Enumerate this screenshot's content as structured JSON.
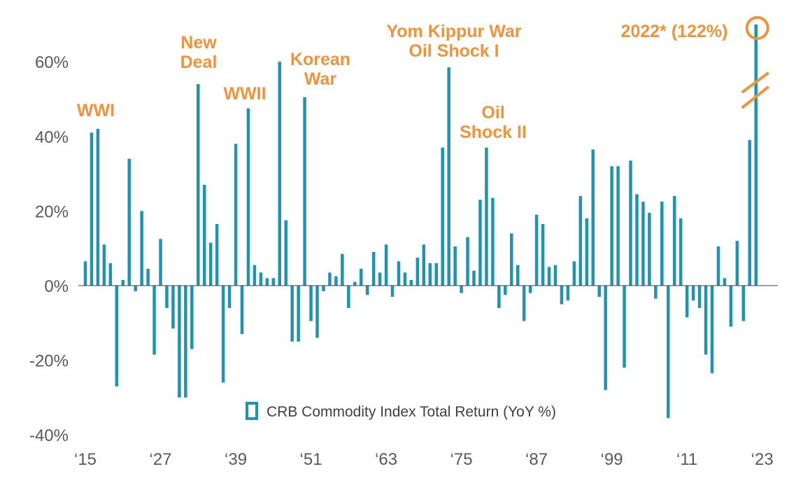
{
  "chart_data": {
    "type": "bar",
    "series": [
      {
        "name": "CRB Commodity Index Total Return (YoY %)",
        "color": "#1f93b0",
        "x": [
          1915,
          1916,
          1917,
          1918,
          1919,
          1920,
          1921,
          1922,
          1923,
          1924,
          1925,
          1926,
          1927,
          1928,
          1929,
          1930,
          1931,
          1932,
          1933,
          1934,
          1935,
          1936,
          1937,
          1938,
          1939,
          1940,
          1941,
          1942,
          1943,
          1944,
          1945,
          1946,
          1947,
          1948,
          1949,
          1950,
          1951,
          1952,
          1953,
          1954,
          1955,
          1956,
          1957,
          1958,
          1959,
          1960,
          1961,
          1962,
          1963,
          1964,
          1965,
          1966,
          1967,
          1968,
          1969,
          1970,
          1971,
          1972,
          1973,
          1974,
          1975,
          1976,
          1977,
          1978,
          1979,
          1980,
          1981,
          1982,
          1983,
          1984,
          1985,
          1986,
          1987,
          1988,
          1989,
          1990,
          1991,
          1992,
          1993,
          1994,
          1995,
          1996,
          1997,
          1998,
          1999,
          2000,
          2001,
          2002,
          2003,
          2004,
          2005,
          2006,
          2007,
          2008,
          2009,
          2010,
          2011,
          2012,
          2013,
          2014,
          2015,
          2016,
          2017,
          2018,
          2019,
          2020,
          2021,
          2022
        ],
        "values": [
          6.5,
          41,
          42,
          11,
          6,
          -27,
          1.5,
          34,
          -1.5,
          20,
          4.5,
          -18.5,
          12.5,
          -6,
          -11.5,
          -30,
          -30,
          -17,
          54,
          27,
          11.5,
          16.5,
          -26,
          -6,
          38,
          -13,
          47.5,
          5.5,
          3.5,
          2,
          2,
          60,
          17.5,
          -15,
          -15,
          50.5,
          -9.5,
          -14,
          -1.5,
          3.5,
          2.5,
          8.5,
          -6,
          1,
          4.5,
          -2.5,
          9,
          3.5,
          11,
          -3,
          6.5,
          3.5,
          1.5,
          7.5,
          11,
          6,
          6,
          37,
          58.5,
          10.5,
          -2,
          13,
          4,
          23,
          37,
          23.5,
          -6,
          -2.5,
          14,
          5.5,
          -9.5,
          -2,
          19,
          16.5,
          5,
          5.5,
          -5,
          -4,
          6.5,
          24,
          18,
          36.5,
          -3,
          -28,
          32,
          32,
          -22,
          33.5,
          24.5,
          22.5,
          19.5,
          -3.5,
          22.5,
          -35.5,
          24,
          18,
          -8.5,
          -4,
          -6,
          -18.5,
          -23.5,
          10.5,
          2,
          -11,
          12,
          -9.5,
          39,
          70
        ]
      }
    ],
    "y_axis": {
      "range": [
        -40,
        60
      ],
      "ticks": [
        -40,
        -20,
        0,
        20,
        40,
        60
      ],
      "tick_labels": [
        "-40%",
        "-20%",
        "0%",
        "20%",
        "40%",
        "60%"
      ]
    },
    "x_axis": {
      "tick_years": [
        1915,
        1927,
        1939,
        1951,
        1963,
        1975,
        1987,
        1999,
        2011,
        2023
      ],
      "tick_labels": [
        "‘15",
        "‘27",
        "‘39",
        "‘51",
        "‘63",
        "‘75",
        "‘87",
        "‘99",
        "‘11",
        "‘23"
      ]
    },
    "axis_break_on_year": 2022,
    "annotations": [
      {
        "lines": [
          "WWI"
        ],
        "year": 1916
      },
      {
        "lines": [
          "New",
          "Deal"
        ],
        "year": 1934
      },
      {
        "lines": [
          "WWII"
        ],
        "year": 1940
      },
      {
        "lines": [
          "Korean",
          "War"
        ],
        "year": 1951
      },
      {
        "lines": [
          "Yom Kippur War",
          "Oil Shock I"
        ],
        "year": 1973
      },
      {
        "lines": [
          "Oil",
          "Shock II"
        ],
        "year": 1979
      },
      {
        "lines": [
          "2022* (122%)"
        ],
        "year": 2022
      }
    ],
    "annotation_color": "#f0933a",
    "grid": false,
    "legend": {
      "position": "bottom-center",
      "label": "CRB Commodity Index Total Return (YoY %)"
    }
  }
}
